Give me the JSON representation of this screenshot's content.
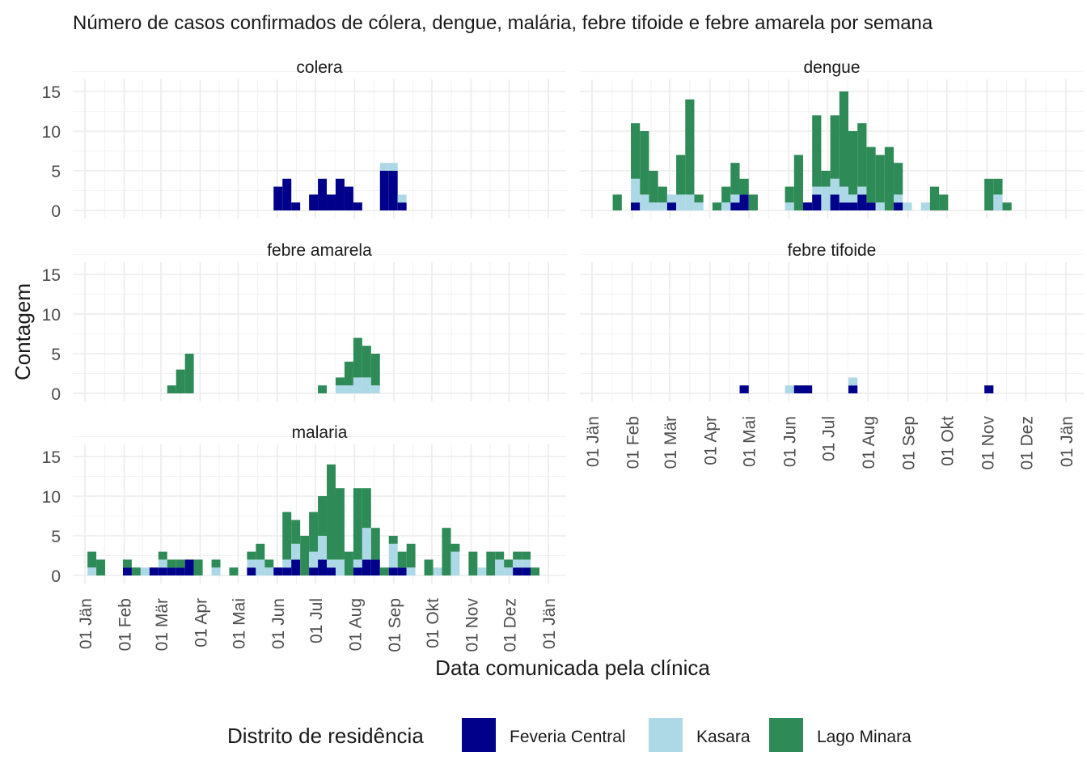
{
  "chart_data": {
    "type": "bar",
    "title": "Número de casos confirmados de cólera, dengue, malária, febre tifoide e febre amarela por semana",
    "xlabel": "Data comunicada pela clínica",
    "ylabel": "Contagem",
    "stacked": true,
    "bin": "week",
    "ylim": [
      0,
      15
    ],
    "y_ticks": [
      0,
      5,
      10,
      15
    ],
    "x_range": [
      "2024-01-01",
      "2025-01-01"
    ],
    "x_ticks": [
      "2024-01-01",
      "2024-02-01",
      "2024-03-01",
      "2024-04-01",
      "2024-05-01",
      "2024-06-01",
      "2024-07-01",
      "2024-08-01",
      "2024-09-01",
      "2024-10-01",
      "2024-11-01",
      "2024-12-01",
      "2025-01-01"
    ],
    "x_tick_labels": [
      "01 Jän",
      "01 Feb",
      "01 Mär",
      "01 Apr",
      "01 Mai",
      "01 Jun",
      "01 Jul",
      "01 Aug",
      "01 Sep",
      "01 Okt",
      "01 Nov",
      "01 Dez",
      "01 Jän"
    ],
    "grid": true,
    "legend": {
      "title": "Distrito de residência",
      "position": "bottom",
      "series": [
        {
          "name": "Feveria Central",
          "color": "#00008B"
        },
        {
          "name": "Kasara",
          "color": "#ADD8E6"
        },
        {
          "name": "Lago Minara",
          "color": "#2E8B57"
        }
      ]
    },
    "series_order": [
      "Feveria Central",
      "Kasara",
      "Lago Minara"
    ],
    "facets": [
      {
        "name": "colera",
        "weeks": [
          {
            "x": "2024-05-29",
            "v": [
              3,
              0,
              0
            ]
          },
          {
            "x": "2024-06-05",
            "v": [
              4,
              0,
              0
            ]
          },
          {
            "x": "2024-06-12",
            "v": [
              1,
              0,
              0
            ]
          },
          {
            "x": "2024-06-26",
            "v": [
              2,
              0,
              0
            ]
          },
          {
            "x": "2024-07-03",
            "v": [
              4,
              0,
              0
            ]
          },
          {
            "x": "2024-07-10",
            "v": [
              2,
              0,
              0
            ]
          },
          {
            "x": "2024-07-17",
            "v": [
              4,
              0,
              0
            ]
          },
          {
            "x": "2024-07-24",
            "v": [
              3,
              0,
              0
            ]
          },
          {
            "x": "2024-07-31",
            "v": [
              1,
              0,
              0
            ]
          },
          {
            "x": "2024-08-21",
            "v": [
              5,
              1,
              0
            ]
          },
          {
            "x": "2024-08-28",
            "v": [
              5,
              1,
              0
            ]
          },
          {
            "x": "2024-09-04",
            "v": [
              1,
              1,
              0
            ]
          }
        ]
      },
      {
        "name": "dengue",
        "weeks": [
          {
            "x": "2024-01-17",
            "v": [
              0,
              0,
              2
            ]
          },
          {
            "x": "2024-01-31",
            "v": [
              1,
              3,
              7
            ]
          },
          {
            "x": "2024-02-07",
            "v": [
              0,
              2,
              8
            ]
          },
          {
            "x": "2024-02-14",
            "v": [
              0,
              1,
              4
            ]
          },
          {
            "x": "2024-02-21",
            "v": [
              0,
              1,
              2
            ]
          },
          {
            "x": "2024-02-28",
            "v": [
              1,
              1,
              0
            ]
          },
          {
            "x": "2024-03-06",
            "v": [
              0,
              2,
              5
            ]
          },
          {
            "x": "2024-03-13",
            "v": [
              0,
              2,
              12
            ]
          },
          {
            "x": "2024-03-20",
            "v": [
              0,
              1,
              1
            ]
          },
          {
            "x": "2024-04-03",
            "v": [
              0,
              0,
              1
            ]
          },
          {
            "x": "2024-04-10",
            "v": [
              0,
              1,
              2
            ]
          },
          {
            "x": "2024-04-17",
            "v": [
              1,
              1,
              4
            ]
          },
          {
            "x": "2024-04-24",
            "v": [
              2,
              0,
              2
            ]
          },
          {
            "x": "2024-05-01",
            "v": [
              0,
              0,
              2
            ]
          },
          {
            "x": "2024-05-29",
            "v": [
              0,
              1,
              2
            ]
          },
          {
            "x": "2024-06-05",
            "v": [
              0,
              0,
              7
            ]
          },
          {
            "x": "2024-06-12",
            "v": [
              1,
              0,
              0
            ]
          },
          {
            "x": "2024-06-19",
            "v": [
              2,
              1,
              9
            ]
          },
          {
            "x": "2024-06-26",
            "v": [
              0,
              3,
              2
            ]
          },
          {
            "x": "2024-07-03",
            "v": [
              2,
              2,
              8
            ]
          },
          {
            "x": "2024-07-10",
            "v": [
              1,
              2,
              12
            ]
          },
          {
            "x": "2024-07-17",
            "v": [
              1,
              1,
              8
            ]
          },
          {
            "x": "2024-07-24",
            "v": [
              2,
              1,
              8
            ]
          },
          {
            "x": "2024-07-31",
            "v": [
              1,
              0,
              7
            ]
          },
          {
            "x": "2024-08-07",
            "v": [
              0,
              1,
              6
            ]
          },
          {
            "x": "2024-08-14",
            "v": [
              0,
              0,
              8
            ]
          },
          {
            "x": "2024-08-21",
            "v": [
              1,
              1,
              4
            ]
          },
          {
            "x": "2024-08-28",
            "v": [
              0,
              1,
              0
            ]
          },
          {
            "x": "2024-09-11",
            "v": [
              0,
              1,
              0
            ]
          },
          {
            "x": "2024-09-18",
            "v": [
              0,
              0,
              3
            ]
          },
          {
            "x": "2024-09-25",
            "v": [
              0,
              0,
              2
            ]
          },
          {
            "x": "2024-10-30",
            "v": [
              0,
              0,
              4
            ]
          },
          {
            "x": "2024-11-06",
            "v": [
              0,
              2,
              2
            ]
          },
          {
            "x": "2024-11-13",
            "v": [
              0,
              0,
              1
            ]
          }
        ]
      },
      {
        "name": "febre amarela",
        "weeks": [
          {
            "x": "2024-03-06",
            "v": [
              0,
              0,
              1
            ]
          },
          {
            "x": "2024-03-13",
            "v": [
              0,
              0,
              3
            ]
          },
          {
            "x": "2024-03-20",
            "v": [
              0,
              0,
              5
            ]
          },
          {
            "x": "2024-07-03",
            "v": [
              0,
              0,
              1
            ]
          },
          {
            "x": "2024-07-17",
            "v": [
              0,
              1,
              1
            ]
          },
          {
            "x": "2024-07-24",
            "v": [
              0,
              1,
              3
            ]
          },
          {
            "x": "2024-07-31",
            "v": [
              0,
              2,
              5
            ]
          },
          {
            "x": "2024-08-07",
            "v": [
              0,
              2,
              4
            ]
          },
          {
            "x": "2024-08-14",
            "v": [
              0,
              1,
              4
            ]
          }
        ]
      },
      {
        "name": "febre tifoide",
        "weeks": [
          {
            "x": "2024-04-24",
            "v": [
              1,
              0,
              0
            ]
          },
          {
            "x": "2024-05-29",
            "v": [
              0,
              1,
              0
            ]
          },
          {
            "x": "2024-06-05",
            "v": [
              1,
              0,
              0
            ]
          },
          {
            "x": "2024-06-12",
            "v": [
              1,
              0,
              0
            ]
          },
          {
            "x": "2024-07-17",
            "v": [
              1,
              1,
              0
            ]
          },
          {
            "x": "2024-10-30",
            "v": [
              1,
              0,
              0
            ]
          }
        ]
      },
      {
        "name": "malaria",
        "weeks": [
          {
            "x": "2024-01-03",
            "v": [
              0,
              1,
              2
            ]
          },
          {
            "x": "2024-01-10",
            "v": [
              0,
              0,
              2
            ]
          },
          {
            "x": "2024-01-31",
            "v": [
              1,
              0,
              1
            ]
          },
          {
            "x": "2024-02-07",
            "v": [
              0,
              0,
              1
            ]
          },
          {
            "x": "2024-02-14",
            "v": [
              0,
              1,
              0
            ]
          },
          {
            "x": "2024-02-21",
            "v": [
              1,
              0,
              0
            ]
          },
          {
            "x": "2024-02-28",
            "v": [
              1,
              1,
              1
            ]
          },
          {
            "x": "2024-03-06",
            "v": [
              1,
              0,
              1
            ]
          },
          {
            "x": "2024-03-13",
            "v": [
              1,
              0,
              1
            ]
          },
          {
            "x": "2024-03-20",
            "v": [
              2,
              0,
              0
            ]
          },
          {
            "x": "2024-03-27",
            "v": [
              0,
              0,
              2
            ]
          },
          {
            "x": "2024-04-10",
            "v": [
              0,
              1,
              1
            ]
          },
          {
            "x": "2024-04-24",
            "v": [
              0,
              0,
              1
            ]
          },
          {
            "x": "2024-05-08",
            "v": [
              1,
              1,
              1
            ]
          },
          {
            "x": "2024-05-15",
            "v": [
              0,
              2,
              2
            ]
          },
          {
            "x": "2024-05-22",
            "v": [
              0,
              1,
              1
            ]
          },
          {
            "x": "2024-05-29",
            "v": [
              1,
              0,
              0
            ]
          },
          {
            "x": "2024-06-05",
            "v": [
              1,
              1,
              6
            ]
          },
          {
            "x": "2024-06-12",
            "v": [
              2,
              2,
              3
            ]
          },
          {
            "x": "2024-06-19",
            "v": [
              0,
              0,
              5
            ]
          },
          {
            "x": "2024-06-26",
            "v": [
              1,
              2,
              5
            ]
          },
          {
            "x": "2024-07-03",
            "v": [
              2,
              3,
              5
            ]
          },
          {
            "x": "2024-07-10",
            "v": [
              1,
              1,
              12
            ]
          },
          {
            "x": "2024-07-17",
            "v": [
              0,
              2,
              9
            ]
          },
          {
            "x": "2024-07-24",
            "v": [
              0,
              0,
              3
            ]
          },
          {
            "x": "2024-07-31",
            "v": [
              1,
              1,
              9
            ]
          },
          {
            "x": "2024-08-07",
            "v": [
              2,
              4,
              5
            ]
          },
          {
            "x": "2024-08-14",
            "v": [
              2,
              0,
              4
            ]
          },
          {
            "x": "2024-08-21",
            "v": [
              0,
              0,
              1
            ]
          },
          {
            "x": "2024-08-28",
            "v": [
              1,
              3,
              1
            ]
          },
          {
            "x": "2024-09-04",
            "v": [
              1,
              0,
              2
            ]
          },
          {
            "x": "2024-09-11",
            "v": [
              0,
              1,
              3
            ]
          },
          {
            "x": "2024-09-25",
            "v": [
              0,
              0,
              2
            ]
          },
          {
            "x": "2024-10-02",
            "v": [
              0,
              1,
              0
            ]
          },
          {
            "x": "2024-10-09",
            "v": [
              0,
              0,
              6
            ]
          },
          {
            "x": "2024-10-16",
            "v": [
              0,
              3,
              1
            ]
          },
          {
            "x": "2024-10-30",
            "v": [
              0,
              0,
              3
            ]
          },
          {
            "x": "2024-11-06",
            "v": [
              0,
              1,
              0
            ]
          },
          {
            "x": "2024-11-13",
            "v": [
              0,
              0,
              3
            ]
          },
          {
            "x": "2024-11-20",
            "v": [
              0,
              2,
              1
            ]
          },
          {
            "x": "2024-11-27",
            "v": [
              0,
              1,
              1
            ]
          },
          {
            "x": "2024-12-04",
            "v": [
              1,
              1,
              1
            ]
          },
          {
            "x": "2024-12-11",
            "v": [
              1,
              1,
              1
            ]
          },
          {
            "x": "2024-12-18",
            "v": [
              0,
              0,
              1
            ]
          }
        ]
      }
    ]
  }
}
